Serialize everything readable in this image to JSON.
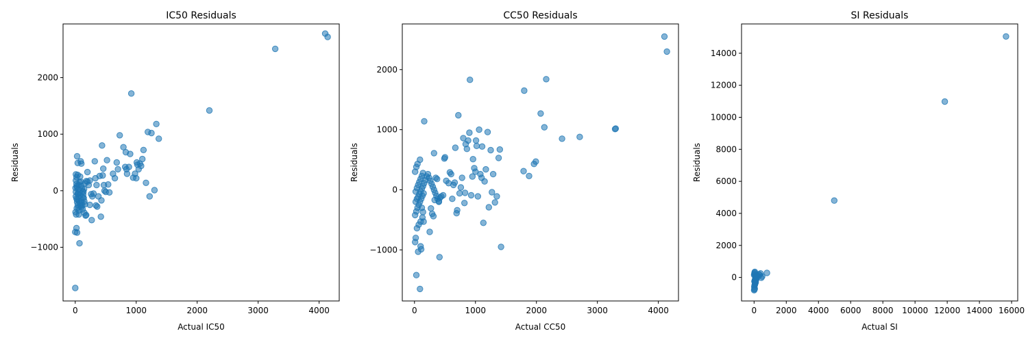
{
  "chart_data": [
    {
      "type": "scatter",
      "title": "IC50 Residuals",
      "xlabel": "Actual IC50",
      "ylabel": "Residuals",
      "xlim": [
        -200,
        4330
      ],
      "ylim": [
        -1950,
        2950
      ],
      "xticks": [
        0,
        1000,
        2000,
        3000,
        4000
      ],
      "xtick_labels": [
        "0",
        "1000",
        "2000",
        "3000",
        "4000"
      ],
      "yticks": [
        -1000,
        0,
        1000,
        2000
      ],
      "ytick_labels": [
        "−1000",
        "0",
        "1000",
        "2000"
      ],
      "grid": false,
      "points": [
        [
          0,
          -1720
        ],
        [
          0,
          -730
        ],
        [
          20,
          -660
        ],
        [
          30,
          -740
        ],
        [
          70,
          -930
        ],
        [
          30,
          610
        ],
        [
          40,
          490
        ],
        [
          90,
          520
        ],
        [
          100,
          480
        ],
        [
          10,
          290
        ],
        [
          20,
          240
        ],
        [
          40,
          280
        ],
        [
          80,
          250
        ],
        [
          10,
          180
        ],
        [
          20,
          120
        ],
        [
          30,
          60
        ],
        [
          50,
          20
        ],
        [
          70,
          -30
        ],
        [
          80,
          -80
        ],
        [
          10,
          -100
        ],
        [
          20,
          -140
        ],
        [
          30,
          -200
        ],
        [
          40,
          -250
        ],
        [
          50,
          -300
        ],
        [
          60,
          -350
        ],
        [
          5,
          -380
        ],
        [
          15,
          -420
        ],
        [
          25,
          -310
        ],
        [
          35,
          -160
        ],
        [
          45,
          -60
        ],
        [
          60,
          100
        ],
        [
          70,
          150
        ],
        [
          90,
          160
        ],
        [
          100,
          90
        ],
        [
          110,
          40
        ],
        [
          120,
          -10
        ],
        [
          130,
          -70
        ],
        [
          140,
          -130
        ],
        [
          150,
          -190
        ],
        [
          160,
          -240
        ],
        [
          100,
          -290
        ],
        [
          120,
          -330
        ],
        [
          150,
          -390
        ],
        [
          180,
          -430
        ],
        [
          170,
          -440
        ],
        [
          60,
          -420
        ],
        [
          5,
          50
        ],
        [
          10,
          -20
        ],
        [
          25,
          80
        ],
        [
          40,
          -50
        ],
        [
          55,
          -110
        ],
        [
          65,
          -180
        ],
        [
          75,
          -220
        ],
        [
          85,
          -270
        ],
        [
          95,
          -170
        ],
        [
          105,
          -220
        ],
        [
          115,
          -260
        ],
        [
          125,
          -120
        ],
        [
          135,
          -20
        ],
        [
          145,
          30
        ],
        [
          160,
          130
        ],
        [
          180,
          170
        ],
        [
          200,
          330
        ],
        [
          200,
          160
        ],
        [
          220,
          100
        ],
        [
          240,
          180
        ],
        [
          260,
          -60
        ],
        [
          280,
          -100
        ],
        [
          300,
          -50
        ],
        [
          240,
          -250
        ],
        [
          270,
          -520
        ],
        [
          320,
          520
        ],
        [
          330,
          220
        ],
        [
          350,
          100
        ],
        [
          340,
          -260
        ],
        [
          360,
          -280
        ],
        [
          380,
          -100
        ],
        [
          400,
          260
        ],
        [
          430,
          -170
        ],
        [
          420,
          -460
        ],
        [
          440,
          800
        ],
        [
          450,
          270
        ],
        [
          460,
          390
        ],
        [
          470,
          100
        ],
        [
          480,
          0
        ],
        [
          500,
          -20
        ],
        [
          520,
          540
        ],
        [
          540,
          110
        ],
        [
          560,
          -30
        ],
        [
          620,
          300
        ],
        [
          650,
          220
        ],
        [
          680,
          500
        ],
        [
          700,
          380
        ],
        [
          730,
          980
        ],
        [
          790,
          770
        ],
        [
          830,
          680
        ],
        [
          820,
          420
        ],
        [
          840,
          380
        ],
        [
          850,
          300
        ],
        [
          880,
          420
        ],
        [
          900,
          650
        ],
        [
          920,
          1720
        ],
        [
          950,
          230
        ],
        [
          980,
          300
        ],
        [
          1000,
          220
        ],
        [
          1010,
          500
        ],
        [
          1020,
          460
        ],
        [
          1040,
          380
        ],
        [
          1060,
          480
        ],
        [
          1080,
          440
        ],
        [
          1100,
          560
        ],
        [
          1120,
          720
        ],
        [
          1160,
          140
        ],
        [
          1190,
          1040
        ],
        [
          1220,
          -100
        ],
        [
          1250,
          1020
        ],
        [
          1300,
          10
        ],
        [
          1330,
          1180
        ],
        [
          1370,
          920
        ],
        [
          2200,
          1420
        ],
        [
          3280,
          2510
        ],
        [
          4100,
          2780
        ],
        [
          4140,
          2720
        ]
      ]
    },
    {
      "type": "scatter",
      "title": "CC50 Residuals",
      "xlabel": "Actual CC50",
      "ylabel": "Residuals",
      "xlim": [
        -200,
        4330
      ],
      "ylim": [
        -1850,
        2760
      ],
      "xticks": [
        0,
        1000,
        2000,
        3000,
        4000
      ],
      "xtick_labels": [
        "0",
        "1000",
        "2000",
        "3000",
        "4000"
      ],
      "yticks": [
        -1000,
        0,
        1000,
        2000
      ],
      "ytick_labels": [
        "−1000",
        "0",
        "1000",
        "2000"
      ],
      "grid": false,
      "points": [
        [
          30,
          -1420
        ],
        [
          90,
          -1650
        ],
        [
          60,
          -1030
        ],
        [
          100,
          -940
        ],
        [
          110,
          -990
        ],
        [
          410,
          -1120
        ],
        [
          10,
          -870
        ],
        [
          20,
          -800
        ],
        [
          40,
          -640
        ],
        [
          70,
          -580
        ],
        [
          100,
          -530
        ],
        [
          130,
          -460
        ],
        [
          150,
          -530
        ],
        [
          10,
          -420
        ],
        [
          30,
          -360
        ],
        [
          50,
          -300
        ],
        [
          70,
          -250
        ],
        [
          90,
          -200
        ],
        [
          110,
          -150
        ],
        [
          130,
          -100
        ],
        [
          150,
          -60
        ],
        [
          20,
          -30
        ],
        [
          40,
          30
        ],
        [
          60,
          80
        ],
        [
          80,
          130
        ],
        [
          100,
          180
        ],
        [
          120,
          230
        ],
        [
          140,
          280
        ],
        [
          10,
          300
        ],
        [
          30,
          380
        ],
        [
          50,
          430
        ],
        [
          90,
          500
        ],
        [
          160,
          1140
        ],
        [
          120,
          -300
        ],
        [
          140,
          -370
        ],
        [
          20,
          -200
        ],
        [
          40,
          -150
        ],
        [
          60,
          -120
        ],
        [
          80,
          -70
        ],
        [
          100,
          -30
        ],
        [
          120,
          20
        ],
        [
          140,
          60
        ],
        [
          160,
          110
        ],
        [
          180,
          160
        ],
        [
          200,
          220
        ],
        [
          220,
          260
        ],
        [
          240,
          200
        ],
        [
          260,
          150
        ],
        [
          280,
          100
        ],
        [
          300,
          50
        ],
        [
          320,
          0
        ],
        [
          340,
          -50
        ],
        [
          360,
          -100
        ],
        [
          380,
          -150
        ],
        [
          400,
          -200
        ],
        [
          250,
          -700
        ],
        [
          270,
          -310
        ],
        [
          290,
          -400
        ],
        [
          310,
          -440
        ],
        [
          320,
          610
        ],
        [
          330,
          -170
        ],
        [
          350,
          200
        ],
        [
          370,
          180
        ],
        [
          400,
          -190
        ],
        [
          420,
          -130
        ],
        [
          440,
          -110
        ],
        [
          470,
          -90
        ],
        [
          490,
          520
        ],
        [
          500,
          540
        ],
        [
          520,
          150
        ],
        [
          560,
          110
        ],
        [
          580,
          290
        ],
        [
          600,
          260
        ],
        [
          620,
          -150
        ],
        [
          640,
          80
        ],
        [
          660,
          120
        ],
        [
          670,
          700
        ],
        [
          690,
          -390
        ],
        [
          700,
          -340
        ],
        [
          720,
          1240
        ],
        [
          740,
          -60
        ],
        [
          760,
          40
        ],
        [
          780,
          200
        ],
        [
          800,
          860
        ],
        [
          820,
          -220
        ],
        [
          830,
          -50
        ],
        [
          840,
          760
        ],
        [
          860,
          680
        ],
        [
          880,
          820
        ],
        [
          900,
          950
        ],
        [
          910,
          1830
        ],
        [
          930,
          -90
        ],
        [
          950,
          220
        ],
        [
          960,
          510
        ],
        [
          980,
          360
        ],
        [
          1000,
          300
        ],
        [
          1010,
          820
        ],
        [
          1020,
          730
        ],
        [
          1040,
          -110
        ],
        [
          1060,
          1000
        ],
        [
          1080,
          260
        ],
        [
          1100,
          200
        ],
        [
          1110,
          720
        ],
        [
          1130,
          -550
        ],
        [
          1150,
          140
        ],
        [
          1170,
          340
        ],
        [
          1200,
          960
        ],
        [
          1220,
          -290
        ],
        [
          1250,
          660
        ],
        [
          1270,
          -40
        ],
        [
          1290,
          260
        ],
        [
          1320,
          -210
        ],
        [
          1350,
          -110
        ],
        [
          1380,
          530
        ],
        [
          1400,
          670
        ],
        [
          1420,
          -950
        ],
        [
          1790,
          310
        ],
        [
          1800,
          1650
        ],
        [
          1880,
          230
        ],
        [
          1960,
          430
        ],
        [
          1990,
          470
        ],
        [
          2070,
          1270
        ],
        [
          2130,
          1040
        ],
        [
          2160,
          1840
        ],
        [
          2420,
          850
        ],
        [
          2710,
          880
        ],
        [
          3290,
          1010
        ],
        [
          3300,
          1020
        ],
        [
          4100,
          2550
        ],
        [
          4140,
          2300
        ]
      ]
    },
    {
      "type": "scatter",
      "title": "SI Residuals",
      "xlabel": "Actual SI",
      "ylabel": "Residuals",
      "xlim": [
        -780,
        16380
      ],
      "ylim": [
        -1470,
        15830
      ],
      "xticks": [
        0,
        2000,
        4000,
        6000,
        8000,
        10000,
        12000,
        14000,
        16000
      ],
      "xtick_labels": [
        "0",
        "2000",
        "4000",
        "6000",
        "8000",
        "10000",
        "12000",
        "14000",
        "16000"
      ],
      "yticks": [
        0,
        2000,
        4000,
        6000,
        8000,
        10000,
        12000,
        14000
      ],
      "ytick_labels": [
        "0",
        "2000",
        "4000",
        "6000",
        "8000",
        "10000",
        "12000",
        "14000"
      ],
      "grid": false,
      "points": [
        [
          5,
          -800
        ],
        [
          20,
          -750
        ],
        [
          40,
          -700
        ],
        [
          10,
          -600
        ],
        [
          30,
          -500
        ],
        [
          50,
          -450
        ],
        [
          60,
          -400
        ],
        [
          80,
          -350
        ],
        [
          100,
          -300
        ],
        [
          20,
          -250
        ],
        [
          40,
          -200
        ],
        [
          60,
          -150
        ],
        [
          80,
          -100
        ],
        [
          100,
          -50
        ],
        [
          120,
          0
        ],
        [
          140,
          50
        ],
        [
          160,
          100
        ],
        [
          5,
          150
        ],
        [
          15,
          200
        ],
        [
          25,
          250
        ],
        [
          35,
          300
        ],
        [
          45,
          350
        ],
        [
          55,
          -300
        ],
        [
          65,
          -200
        ],
        [
          75,
          -100
        ],
        [
          85,
          0
        ],
        [
          95,
          100
        ],
        [
          120,
          -150
        ],
        [
          150,
          -80
        ],
        [
          180,
          30
        ],
        [
          200,
          120
        ],
        [
          250,
          80
        ],
        [
          300,
          200
        ],
        [
          350,
          150
        ],
        [
          400,
          250
        ],
        [
          450,
          -20
        ],
        [
          500,
          60
        ],
        [
          800,
          280
        ],
        [
          4980,
          4800
        ],
        [
          11850,
          10980
        ],
        [
          15650,
          15050
        ]
      ]
    }
  ]
}
